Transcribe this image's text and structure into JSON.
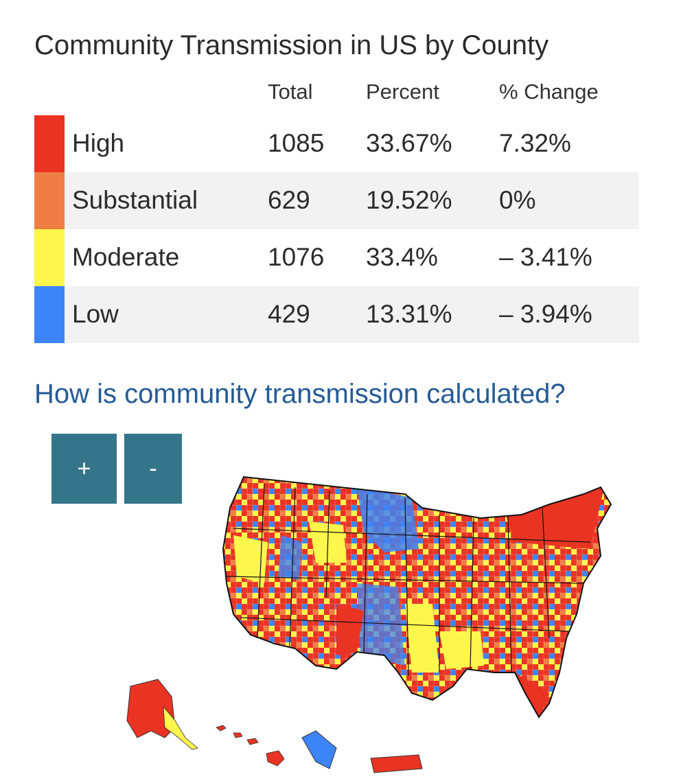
{
  "title": "Community Transmission in US by County",
  "table": {
    "headers": {
      "total": "Total",
      "percent": "Percent",
      "change": "% Change"
    },
    "rows": [
      {
        "level": "High",
        "total": "1085",
        "percent": "33.67%",
        "change": "7.32%",
        "color": "#e93323"
      },
      {
        "level": "Substantial",
        "total": "629",
        "percent": "19.52%",
        "change": "0%",
        "color": "#ef7e45"
      },
      {
        "level": "Moderate",
        "total": "1076",
        "percent": "33.4%",
        "change": "– 3.41%",
        "color": "#fdf64c"
      },
      {
        "level": "Low",
        "total": "429",
        "percent": "13.31%",
        "change": "– 3.94%",
        "color": "#3d84f7"
      }
    ]
  },
  "link_text": "How is community transmission calculated?",
  "zoom": {
    "in_label": "+",
    "out_label": "-"
  },
  "colors": {
    "high": "#e93323",
    "substantial": "#ef7e45",
    "moderate": "#fdf64c",
    "low": "#3d84f7",
    "link": "#255b95",
    "button": "#34758a"
  }
}
